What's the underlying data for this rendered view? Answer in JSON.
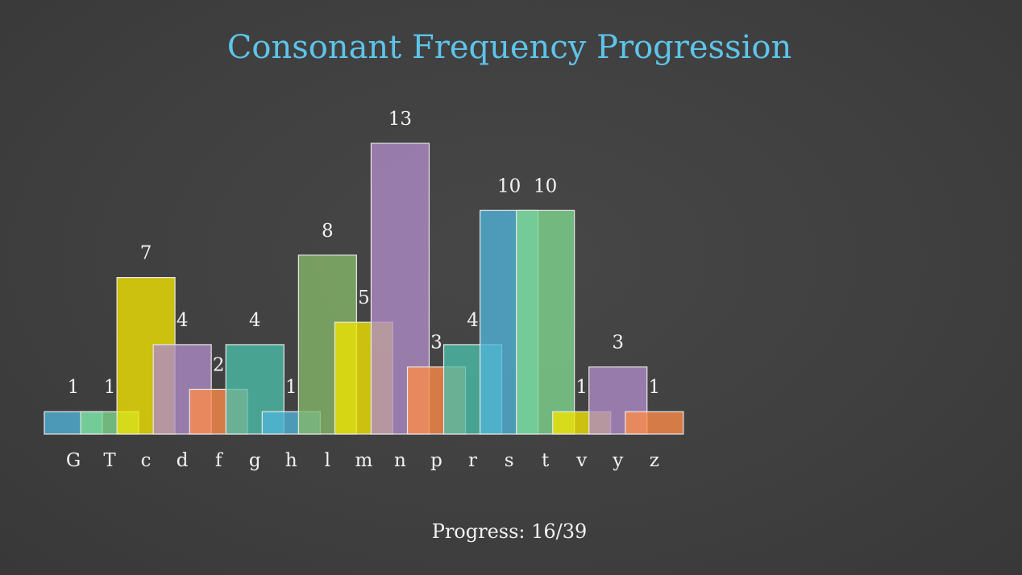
{
  "chart_data": {
    "type": "bar",
    "title": "Consonant Frequency Progression",
    "categories": [
      "G",
      "T",
      "c",
      "d",
      "f",
      "g",
      "h",
      "l",
      "m",
      "n",
      "p",
      "r",
      "s",
      "t",
      "v",
      "y",
      "z"
    ],
    "values": [
      1,
      1,
      7,
      4,
      2,
      4,
      1,
      8,
      5,
      13,
      3,
      4,
      10,
      10,
      1,
      3,
      1
    ],
    "bar_colors": [
      "#4fb3d9",
      "#7fd98f",
      "#f2e600",
      "#b08cc8",
      "#ff8c4a",
      "#4cbfaa",
      "#4fb3d9",
      "#86b86a",
      "#f2e600",
      "#b08cc8",
      "#ff8c4a",
      "#4cbfaa",
      "#4fb3d9",
      "#7fd98f",
      "#f2e600",
      "#b08cc8",
      "#ff8c4a"
    ],
    "ylim": [
      0,
      13
    ],
    "grid": false,
    "legend": "none"
  },
  "progress": {
    "label": "Progress: 16/39"
  },
  "colors": {
    "title": "#5ec4ea",
    "text": "#f2f2f2",
    "background": "#424242"
  }
}
